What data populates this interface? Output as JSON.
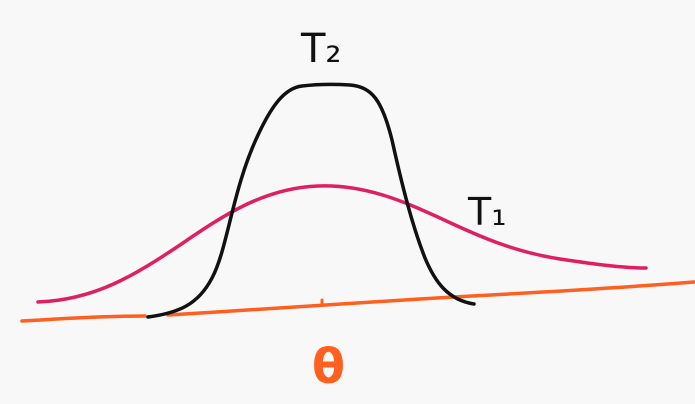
{
  "labels": {
    "t2": "T₂",
    "t1": "T₁",
    "axis": "θ"
  },
  "colors": {
    "background": "#f8f8f8",
    "t2_curve": "#111111",
    "t1_curve": "#e0205e",
    "axis_line": "#ff5f1f",
    "axis_label": "#ff5f1f"
  }
}
